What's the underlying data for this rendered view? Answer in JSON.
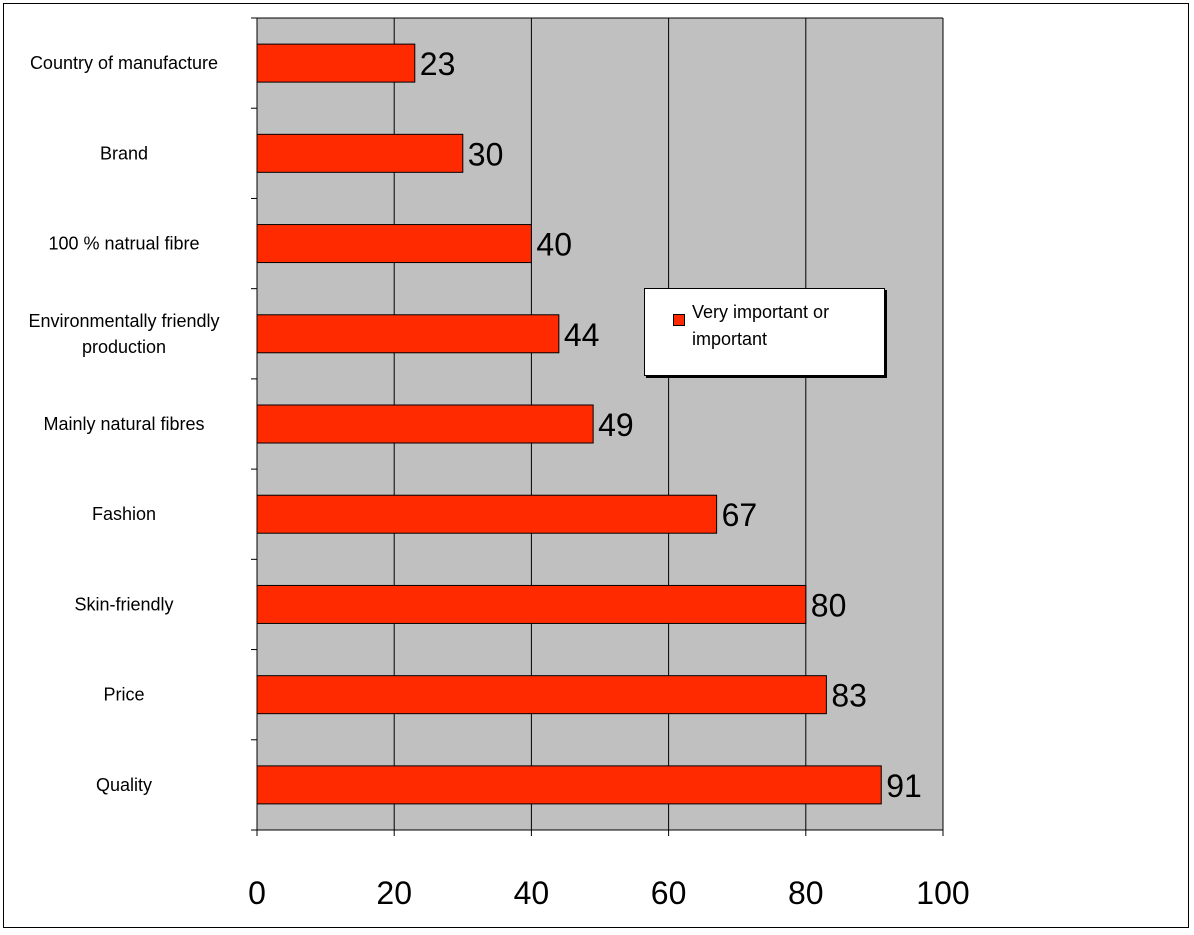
{
  "chart_data": {
    "type": "bar",
    "orientation": "horizontal",
    "title": "",
    "categories": [
      "Country of manufacture",
      "Brand",
      "100 % natrual fibre",
      "Environmentally friendly production",
      "Mainly natural fibres",
      "Fashion",
      "Skin-friendly",
      "Price",
      "Quality"
    ],
    "series": [
      {
        "name": "Very important or important",
        "values": [
          23,
          30,
          40,
          44,
          49,
          67,
          80,
          83,
          91
        ],
        "color": "#ff2a00"
      }
    ],
    "xlim": [
      0,
      100
    ],
    "xticks": [
      "0",
      "20",
      "40",
      "60",
      "80",
      "100"
    ],
    "xlabel": "",
    "ylabel": "",
    "grid": true,
    "plot_background": "#c0c0c0",
    "legend_position": "right"
  }
}
